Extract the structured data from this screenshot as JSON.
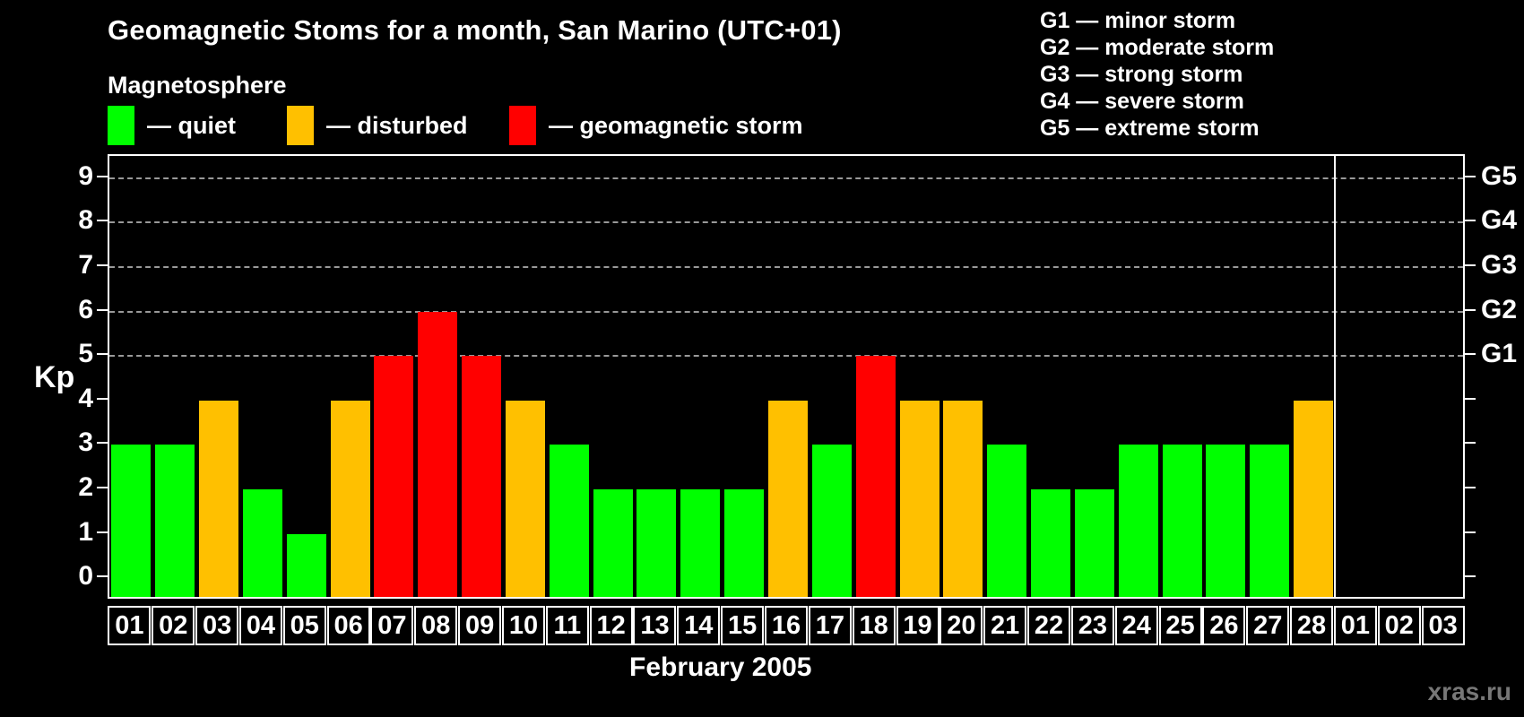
{
  "title": "Geomagnetic Stoms for a month, San Marino (UTC+01)",
  "legend": {
    "heading": "Magnetosphere",
    "items": [
      {
        "key": "quiet",
        "label": "— quiet",
        "color": "#00ff00"
      },
      {
        "key": "disturbed",
        "label": "— disturbed",
        "color": "#ffc000"
      },
      {
        "key": "storm",
        "label": "— geomagnetic storm",
        "color": "#ff0000"
      }
    ]
  },
  "g_legend": {
    "items": [
      {
        "text": "G1 — minor storm"
      },
      {
        "text": "G2 — moderate storm"
      },
      {
        "text": "G3 — strong storm"
      },
      {
        "text": "G4 — severe storm"
      },
      {
        "text": "G5 — extreme storm"
      }
    ]
  },
  "colors": {
    "quiet": "#00ff00",
    "disturbed": "#ffc000",
    "storm": "#ff0000",
    "grid": "#999999",
    "axis": "#ffffff",
    "watermark": "#777777"
  },
  "chart_data": {
    "type": "bar",
    "title": "Geomagnetic Stoms for a month, San Marino (UTC+01)",
    "ylabel": "Kp",
    "xlabel": "February 2005",
    "ylim": [
      -0.5,
      9.5
    ],
    "yticks": [
      0,
      1,
      2,
      3,
      4,
      5,
      6,
      7,
      8,
      9
    ],
    "gridlines": [
      5,
      6,
      7,
      8,
      9
    ],
    "grid": "dashed",
    "legend_position": "top-left",
    "right_axis_labels": [
      {
        "value": 5,
        "label": "G1"
      },
      {
        "value": 6,
        "label": "G2"
      },
      {
        "value": 7,
        "label": "G3"
      },
      {
        "value": 8,
        "label": "G4"
      },
      {
        "value": 9,
        "label": "G5"
      }
    ],
    "month_separator_after_index": 27,
    "categories": [
      "01",
      "02",
      "03",
      "04",
      "05",
      "06",
      "07",
      "08",
      "09",
      "10",
      "11",
      "12",
      "13",
      "14",
      "15",
      "16",
      "17",
      "18",
      "19",
      "20",
      "21",
      "22",
      "23",
      "24",
      "25",
      "26",
      "27",
      "28",
      "01",
      "02",
      "03"
    ],
    "values": [
      3,
      3,
      4,
      2,
      1,
      4,
      5,
      6,
      5,
      4,
      3,
      2,
      2,
      2,
      2,
      4,
      3,
      5,
      4,
      4,
      3,
      2,
      2,
      3,
      3,
      3,
      3,
      4,
      null,
      null,
      null
    ],
    "statuses": [
      "quiet",
      "quiet",
      "disturbed",
      "quiet",
      "quiet",
      "disturbed",
      "storm",
      "storm",
      "storm",
      "disturbed",
      "quiet",
      "quiet",
      "quiet",
      "quiet",
      "quiet",
      "disturbed",
      "quiet",
      "storm",
      "disturbed",
      "disturbed",
      "quiet",
      "quiet",
      "quiet",
      "quiet",
      "quiet",
      "quiet",
      "quiet",
      "disturbed",
      null,
      null,
      null
    ]
  },
  "watermark": "xras.ru"
}
